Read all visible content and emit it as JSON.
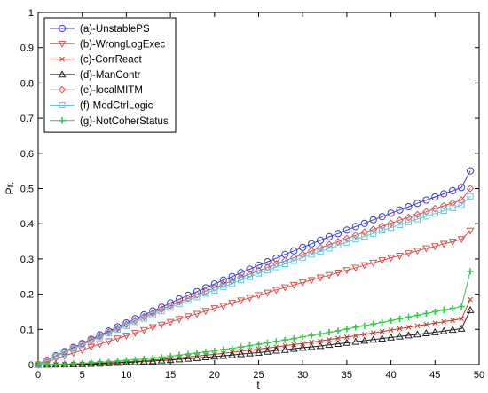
{
  "chart_data": {
    "type": "line",
    "xlabel": "t",
    "ylabel": "Pr.",
    "xlim": [
      0,
      50
    ],
    "ylim": [
      0,
      1
    ],
    "x_ticks": [
      "0",
      "5",
      "10",
      "15",
      "20",
      "25",
      "30",
      "35",
      "40",
      "45",
      "50"
    ],
    "y_ticks": [
      "0",
      "0.1",
      "0.2",
      "0.3",
      "0.4",
      "0.5",
      "0.6",
      "0.7",
      "0.8",
      "0.9",
      "1"
    ],
    "grid": false,
    "legend_position": "top-left",
    "x": [
      0,
      1,
      2,
      3,
      4,
      5,
      6,
      7,
      8,
      9,
      10,
      11,
      12,
      13,
      14,
      15,
      16,
      17,
      18,
      19,
      20,
      21,
      22,
      23,
      24,
      25,
      26,
      27,
      28,
      29,
      30,
      31,
      32,
      33,
      34,
      35,
      36,
      37,
      38,
      39,
      40,
      41,
      42,
      43,
      44,
      45,
      46,
      47,
      48,
      49
    ],
    "series": [
      {
        "name": "(a)-UnstablePS",
        "color": "#3b3bd6",
        "marker": "circle",
        "values": [
          0,
          0.012,
          0.025,
          0.037,
          0.049,
          0.06,
          0.072,
          0.084,
          0.095,
          0.107,
          0.118,
          0.13,
          0.141,
          0.152,
          0.163,
          0.175,
          0.186,
          0.197,
          0.207,
          0.218,
          0.229,
          0.24,
          0.25,
          0.261,
          0.271,
          0.282,
          0.292,
          0.302,
          0.313,
          0.323,
          0.333,
          0.343,
          0.353,
          0.363,
          0.372,
          0.382,
          0.392,
          0.401,
          0.411,
          0.42,
          0.43,
          0.439,
          0.448,
          0.458,
          0.467,
          0.476,
          0.485,
          0.494,
          0.503,
          0.55
        ]
      },
      {
        "name": "(b)-WrongLogExec",
        "color": "#d9534f",
        "marker": "triangle-down",
        "values": [
          0,
          0.008,
          0.017,
          0.025,
          0.033,
          0.041,
          0.05,
          0.058,
          0.066,
          0.074,
          0.082,
          0.09,
          0.098,
          0.106,
          0.113,
          0.121,
          0.129,
          0.137,
          0.144,
          0.152,
          0.16,
          0.167,
          0.175,
          0.182,
          0.19,
          0.197,
          0.204,
          0.212,
          0.219,
          0.226,
          0.233,
          0.24,
          0.247,
          0.254,
          0.261,
          0.268,
          0.275,
          0.282,
          0.289,
          0.296,
          0.303,
          0.309,
          0.316,
          0.323,
          0.33,
          0.336,
          0.343,
          0.349,
          0.356,
          0.38
        ]
      },
      {
        "name": "(c)-CorrReact",
        "color": "#c0392b",
        "marker": "x",
        "values": [
          0,
          0.0001,
          0.0003,
          0.0007,
          0.0013,
          0.002,
          0.003,
          0.004,
          0.005,
          0.006,
          0.008,
          0.009,
          0.011,
          0.013,
          0.015,
          0.017,
          0.019,
          0.022,
          0.024,
          0.027,
          0.029,
          0.032,
          0.035,
          0.038,
          0.041,
          0.044,
          0.047,
          0.05,
          0.054,
          0.057,
          0.06,
          0.064,
          0.067,
          0.071,
          0.075,
          0.078,
          0.082,
          0.086,
          0.09,
          0.094,
          0.098,
          0.102,
          0.106,
          0.11,
          0.114,
          0.118,
          0.122,
          0.126,
          0.13,
          0.185
        ]
      },
      {
        "name": "(d)-ManContr",
        "color": "#222222",
        "marker": "triangle-up",
        "values": [
          0,
          0.0001,
          0.0003,
          0.0006,
          0.001,
          0.0016,
          0.0023,
          0.003,
          0.004,
          0.005,
          0.006,
          0.007,
          0.009,
          0.01,
          0.012,
          0.013,
          0.015,
          0.017,
          0.019,
          0.021,
          0.023,
          0.025,
          0.027,
          0.03,
          0.032,
          0.034,
          0.037,
          0.04,
          0.042,
          0.045,
          0.048,
          0.05,
          0.053,
          0.056,
          0.059,
          0.062,
          0.065,
          0.068,
          0.071,
          0.074,
          0.077,
          0.08,
          0.083,
          0.086,
          0.089,
          0.092,
          0.095,
          0.099,
          0.102,
          0.155
        ]
      },
      {
        "name": "(e)-localMITM",
        "color": "#d9534f",
        "marker": "diamond",
        "values": [
          0,
          0.012,
          0.024,
          0.036,
          0.047,
          0.059,
          0.07,
          0.081,
          0.092,
          0.103,
          0.114,
          0.125,
          0.136,
          0.146,
          0.157,
          0.167,
          0.178,
          0.188,
          0.198,
          0.208,
          0.218,
          0.228,
          0.238,
          0.248,
          0.257,
          0.267,
          0.276,
          0.286,
          0.295,
          0.304,
          0.313,
          0.323,
          0.332,
          0.341,
          0.349,
          0.358,
          0.367,
          0.376,
          0.384,
          0.393,
          0.401,
          0.41,
          0.418,
          0.426,
          0.434,
          0.443,
          0.451,
          0.459,
          0.467,
          0.5
        ]
      },
      {
        "name": "(f)-ModCtrlLogic",
        "color": "#5bc8e6",
        "marker": "square",
        "values": [
          0,
          0.011,
          0.023,
          0.034,
          0.045,
          0.056,
          0.067,
          0.078,
          0.089,
          0.1,
          0.11,
          0.121,
          0.131,
          0.141,
          0.152,
          0.162,
          0.172,
          0.182,
          0.192,
          0.202,
          0.211,
          0.221,
          0.23,
          0.24,
          0.249,
          0.259,
          0.268,
          0.277,
          0.286,
          0.295,
          0.304,
          0.313,
          0.321,
          0.33,
          0.339,
          0.347,
          0.356,
          0.364,
          0.372,
          0.381,
          0.389,
          0.397,
          0.405,
          0.413,
          0.421,
          0.429,
          0.437,
          0.445,
          0.453,
          0.478
        ]
      },
      {
        "name": "(g)-NotCoherStatus",
        "color": "#2ecc40",
        "marker": "plus",
        "values": [
          0,
          0.0002,
          0.0007,
          0.0015,
          0.0026,
          0.004,
          0.005,
          0.007,
          0.008,
          0.01,
          0.012,
          0.014,
          0.016,
          0.019,
          0.021,
          0.024,
          0.027,
          0.03,
          0.033,
          0.036,
          0.039,
          0.043,
          0.046,
          0.05,
          0.054,
          0.058,
          0.062,
          0.066,
          0.07,
          0.074,
          0.079,
          0.083,
          0.087,
          0.092,
          0.096,
          0.101,
          0.106,
          0.11,
          0.115,
          0.12,
          0.125,
          0.13,
          0.135,
          0.14,
          0.145,
          0.15,
          0.155,
          0.16,
          0.165,
          0.265
        ]
      }
    ]
  }
}
